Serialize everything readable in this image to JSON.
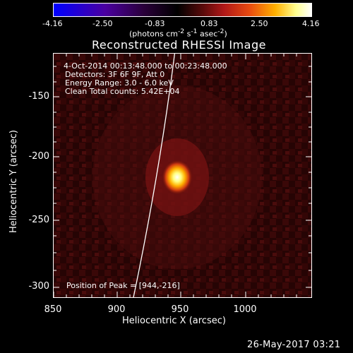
{
  "colorbar": {
    "ticks": [
      "-4.16",
      "-2.50",
      "-0.83",
      "0.83",
      "2.50",
      "4.16"
    ],
    "units_html": "(photons cm<sup>-2</sup> s<sup>-1</sup> asec<sup>-2</sup>)",
    "colors": [
      "#0000ff",
      "#4b00a0",
      "#2a003a",
      "#000000",
      "#5a0a0a",
      "#b01818",
      "#e84a10",
      "#ffb000",
      "#ffff90",
      "#ffffff"
    ]
  },
  "plot": {
    "title": "Reconstructed RHESSI Image",
    "info": [
      "4-Oct-2014 00:13:48.000 to 00:23:48.000",
      "Detectors: 3F 6F 9F, Att 0",
      "Energy Range: 3.0 - 6.0 keV",
      "Clean    Total counts: 5.42E+04"
    ],
    "peak_text": "Position of Peak = [944,-216]",
    "x_ticks": [
      "850",
      "900",
      "950",
      "1000"
    ],
    "y_ticks": [
      "-150",
      "-200",
      "-250",
      "-300"
    ],
    "x_label": "Heliocentric X (arcsec)",
    "y_label": "Heliocentric Y (arcsec)"
  },
  "timestamp": "26-May-2017 03:21"
}
